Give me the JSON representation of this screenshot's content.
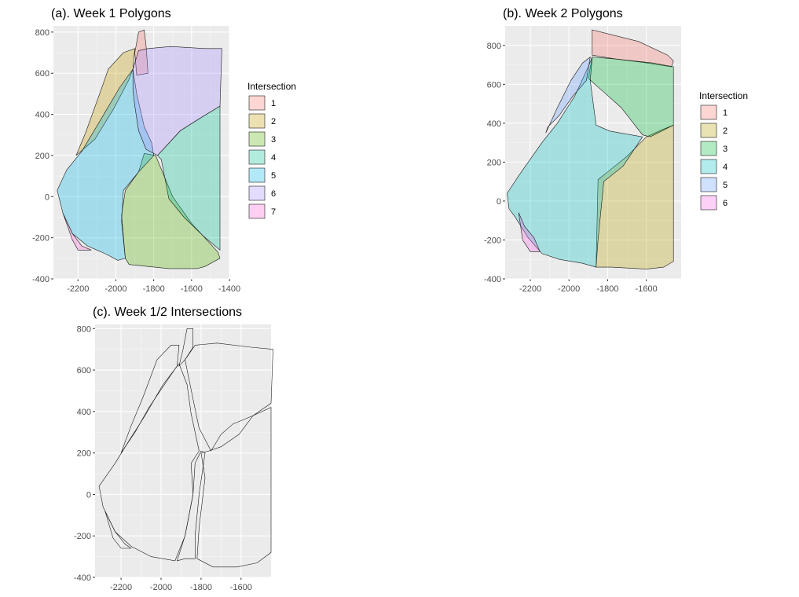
{
  "chart_data": [
    {
      "id": "a",
      "type": "polygon-map",
      "title": "(a). Week 1 Polygons",
      "legend_title": "Intersection",
      "xticks": [
        -2200,
        -2000,
        -1800,
        -1600,
        -1400
      ],
      "yticks": [
        -400,
        -200,
        0,
        200,
        400,
        600,
        800
      ],
      "xlim": [
        -2330,
        -1400
      ],
      "ylim": [
        -400,
        830
      ],
      "polygons": [
        {
          "label": "1",
          "color": "#F8766D",
          "points": [
            [
              -1890,
              590
            ],
            [
              -1900,
              700
            ],
            [
              -1880,
              800
            ],
            [
              -1850,
              810
            ],
            [
              -1840,
              730
            ],
            [
              -1830,
              600
            ]
          ]
        },
        {
          "label": "2",
          "color": "#C49A00",
          "points": [
            [
              -2210,
              200
            ],
            [
              -2160,
              310
            ],
            [
              -2070,
              540
            ],
            [
              -2040,
              620
            ],
            [
              -1960,
              700
            ],
            [
              -1900,
              720
            ],
            [
              -1910,
              620
            ],
            [
              -1930,
              570
            ],
            [
              -2010,
              430
            ],
            [
              -2110,
              280
            ]
          ]
        },
        {
          "label": "3",
          "color": "#53B400",
          "points": [
            [
              -1950,
              -300
            ],
            [
              -1930,
              -330
            ],
            [
              -1720,
              -350
            ],
            [
              -1570,
              -350
            ],
            [
              -1530,
              -340
            ],
            [
              -1450,
              -300
            ],
            [
              -1460,
              -270
            ],
            [
              -1600,
              -130
            ],
            [
              -1700,
              0
            ],
            [
              -1790,
              200
            ],
            [
              -1850,
              210
            ],
            [
              -1880,
              120
            ],
            [
              -1950,
              30
            ],
            [
              -1970,
              -90
            ]
          ]
        },
        {
          "label": "4",
          "color": "#00C094",
          "points": [
            [
              -1780,
              200
            ],
            [
              -1660,
              320
            ],
            [
              -1540,
              390
            ],
            [
              -1450,
              440
            ],
            [
              -1450,
              -260
            ],
            [
              -1540,
              -190
            ],
            [
              -1640,
              -100
            ],
            [
              -1720,
              -10
            ],
            [
              -1760,
              180
            ]
          ]
        },
        {
          "label": "5",
          "color": "#00B6EB",
          "points": [
            [
              -2310,
              30
            ],
            [
              -2260,
              130
            ],
            [
              -2180,
              220
            ],
            [
              -2070,
              390
            ],
            [
              -1980,
              530
            ],
            [
              -1910,
              620
            ],
            [
              -1890,
              500
            ],
            [
              -1850,
              340
            ],
            [
              -1810,
              260
            ],
            [
              -1800,
              200
            ],
            [
              -1880,
              120
            ],
            [
              -1960,
              30
            ],
            [
              -1970,
              -120
            ],
            [
              -1950,
              -300
            ],
            [
              -1990,
              -310
            ],
            [
              -2050,
              -280
            ],
            [
              -2150,
              -240
            ],
            [
              -2230,
              -180
            ],
            [
              -2280,
              -80
            ]
          ]
        },
        {
          "label": "6",
          "color": "#A58AFF",
          "points": [
            [
              -1910,
              620
            ],
            [
              -1890,
              680
            ],
            [
              -1880,
              710
            ],
            [
              -1830,
              720
            ],
            [
              -1710,
              730
            ],
            [
              -1530,
              720
            ],
            [
              -1440,
              720
            ],
            [
              -1450,
              440
            ],
            [
              -1540,
              390
            ],
            [
              -1660,
              320
            ],
            [
              -1780,
              200
            ],
            [
              -1840,
              230
            ],
            [
              -1880,
              320
            ],
            [
              -1900,
              440
            ],
            [
              -1910,
              520
            ]
          ]
        },
        {
          "label": "7",
          "color": "#FB61D7",
          "points": [
            [
              -2280,
              -80
            ],
            [
              -2230,
              -180
            ],
            [
              -2180,
              -240
            ],
            [
              -2130,
              -260
            ],
            [
              -2200,
              -260
            ],
            [
              -2230,
              -210
            ]
          ]
        }
      ]
    },
    {
      "id": "b",
      "type": "polygon-map",
      "title": "(b). Week 2 Polygons",
      "legend_title": "Intersection",
      "xticks": [
        -2200,
        -2000,
        -1800,
        -1600
      ],
      "yticks": [
        -400,
        -200,
        0,
        200,
        400,
        600,
        800
      ],
      "xlim": [
        -2330,
        -1420
      ],
      "ylim": [
        -400,
        900
      ],
      "polygons": [
        {
          "label": "1",
          "color": "#F8766D",
          "points": [
            [
              -1880,
              880
            ],
            [
              -1880,
              750
            ],
            [
              -1760,
              730
            ],
            [
              -1600,
              710
            ],
            [
              -1470,
              690
            ],
            [
              -1460,
              720
            ],
            [
              -1490,
              750
            ],
            [
              -1640,
              820
            ]
          ]
        },
        {
          "label": "2",
          "color": "#B79F00",
          "points": [
            [
              -1850,
              110
            ],
            [
              -1860,
              -340
            ],
            [
              -1780,
              -340
            ],
            [
              -1600,
              -350
            ],
            [
              -1510,
              -340
            ],
            [
              -1460,
              -310
            ],
            [
              -1460,
              390
            ],
            [
              -1510,
              370
            ],
            [
              -1600,
              330
            ],
            [
              -1700,
              230
            ],
            [
              -1800,
              150
            ]
          ]
        },
        {
          "label": "3",
          "color": "#00BA38",
          "points": [
            [
              -1880,
              740
            ],
            [
              -1900,
              630
            ],
            [
              -1820,
              560
            ],
            [
              -1730,
              480
            ],
            [
              -1620,
              340
            ],
            [
              -1580,
              330
            ],
            [
              -1460,
              390
            ],
            [
              -1460,
              690
            ],
            [
              -1570,
              710
            ],
            [
              -1760,
              730
            ]
          ]
        },
        {
          "label": "4",
          "color": "#00BFC4",
          "points": [
            [
              -2320,
              40
            ],
            [
              -2260,
              130
            ],
            [
              -2140,
              300
            ],
            [
              -2060,
              400
            ],
            [
              -1970,
              540
            ],
            [
              -1900,
              690
            ],
            [
              -1880,
              740
            ],
            [
              -1890,
              620
            ],
            [
              -1860,
              390
            ],
            [
              -1790,
              360
            ],
            [
              -1620,
              330
            ],
            [
              -1720,
              180
            ],
            [
              -1820,
              100
            ],
            [
              -1850,
              -200
            ],
            [
              -1860,
              -340
            ],
            [
              -1930,
              -320
            ],
            [
              -2050,
              -300
            ],
            [
              -2140,
              -270
            ],
            [
              -2210,
              -190
            ],
            [
              -2280,
              -80
            ],
            [
              -2310,
              -40
            ]
          ]
        },
        {
          "label": "5",
          "color": "#619CFF",
          "points": [
            [
              -2120,
              350
            ],
            [
              -2060,
              480
            ],
            [
              -1990,
              620
            ],
            [
              -1930,
              710
            ],
            [
              -1890,
              740
            ],
            [
              -1910,
              620
            ],
            [
              -1980,
              540
            ],
            [
              -2050,
              440
            ],
            [
              -2110,
              380
            ]
          ]
        },
        {
          "label": "6",
          "color": "#F564E3",
          "points": [
            [
              -2260,
              -60
            ],
            [
              -2230,
              -130
            ],
            [
              -2180,
              -190
            ],
            [
              -2150,
              -260
            ],
            [
              -2200,
              -260
            ],
            [
              -2240,
              -200
            ]
          ]
        }
      ]
    },
    {
      "id": "c",
      "type": "polygon-map",
      "title": "(c). Week 1/2 Intersections",
      "xticks": [
        -2200,
        -2000,
        -1800,
        -1600
      ],
      "yticks": [
        -400,
        -200,
        0,
        200,
        400,
        600,
        800
      ],
      "xlim": [
        -2330,
        -1450
      ],
      "ylim": [
        -400,
        820
      ],
      "polygons": [
        {
          "label": "",
          "color": "#ebebeb",
          "points": [
            [
              -2310,
              40
            ],
            [
              -2230,
              150
            ],
            [
              -2160,
              260
            ],
            [
              -2080,
              380
            ],
            [
              -1990,
              530
            ],
            [
              -1910,
              630
            ],
            [
              -1870,
              530
            ],
            [
              -1850,
              390
            ],
            [
              -1810,
              210
            ],
            [
              -1850,
              150
            ],
            [
              -1840,
              0
            ],
            [
              -1880,
              -200
            ],
            [
              -1930,
              -320
            ],
            [
              -2050,
              -300
            ],
            [
              -2150,
              -250
            ],
            [
              -2230,
              -180
            ],
            [
              -2290,
              -60
            ]
          ]
        },
        {
          "label": "",
          "color": "#ebebeb",
          "points": [
            [
              -2200,
              200
            ],
            [
              -2150,
              330
            ],
            [
              -2090,
              470
            ],
            [
              -2020,
              650
            ],
            [
              -1950,
              720
            ],
            [
              -1910,
              720
            ],
            [
              -1920,
              620
            ],
            [
              -1990,
              520
            ],
            [
              -2060,
              420
            ],
            [
              -2130,
              300
            ]
          ]
        },
        {
          "label": "",
          "color": "#ebebeb",
          "points": [
            [
              -1910,
              620
            ],
            [
              -1890,
              700
            ],
            [
              -1870,
              800
            ],
            [
              -1840,
              800
            ],
            [
              -1840,
              710
            ],
            [
              -1880,
              650
            ]
          ]
        },
        {
          "label": "",
          "color": "#ebebeb",
          "points": [
            [
              -1880,
              650
            ],
            [
              -1830,
              720
            ],
            [
              -1720,
              730
            ],
            [
              -1550,
              710
            ],
            [
              -1440,
              700
            ],
            [
              -1450,
              440
            ],
            [
              -1540,
              380
            ],
            [
              -1640,
              340
            ],
            [
              -1700,
              290
            ],
            [
              -1750,
              210
            ],
            [
              -1810,
              320
            ],
            [
              -1840,
              460
            ]
          ]
        },
        {
          "label": "",
          "color": "#ebebeb",
          "points": [
            [
              -1800,
              200
            ],
            [
              -1760,
              210
            ],
            [
              -1700,
              230
            ],
            [
              -1610,
              290
            ],
            [
              -1540,
              380
            ],
            [
              -1450,
              420
            ],
            [
              -1450,
              -280
            ],
            [
              -1520,
              -330
            ],
            [
              -1620,
              -350
            ],
            [
              -1740,
              -350
            ],
            [
              -1820,
              -310
            ],
            [
              -1810,
              -160
            ],
            [
              -1780,
              80
            ]
          ]
        },
        {
          "label": "",
          "color": "#ebebeb",
          "points": [
            [
              -1880,
              -310
            ],
            [
              -1920,
              -320
            ],
            [
              -1880,
              -200
            ],
            [
              -1840,
              0
            ],
            [
              -1830,
              150
            ],
            [
              -1800,
              210
            ],
            [
              -1780,
              200
            ],
            [
              -1810,
              0
            ],
            [
              -1830,
              -200
            ],
            [
              -1830,
              -310
            ]
          ]
        },
        {
          "label": "",
          "color": "#ebebeb",
          "points": [
            [
              -2280,
              -80
            ],
            [
              -2230,
              -180
            ],
            [
              -2180,
              -240
            ],
            [
              -2150,
              -260
            ],
            [
              -2200,
              -260
            ],
            [
              -2240,
              -210
            ]
          ]
        }
      ]
    }
  ]
}
